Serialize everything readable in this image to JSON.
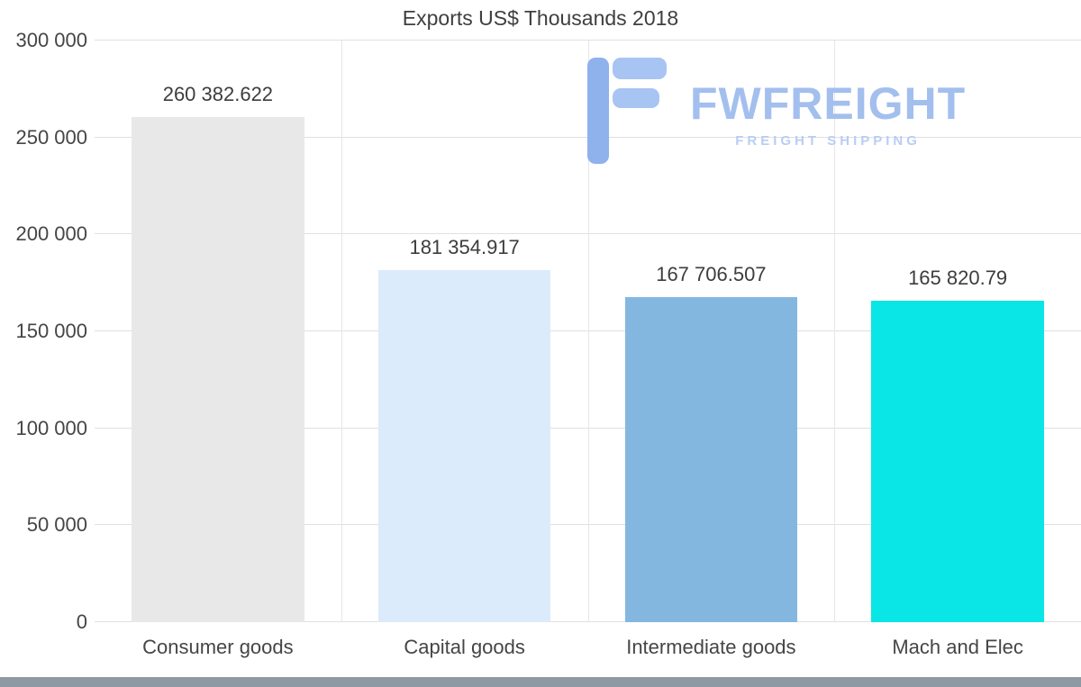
{
  "page": {
    "title": "Exports US$ Thousands 2018"
  },
  "watermark": {
    "brand": "FWFREIGHT",
    "tagline": "FREIGHT SHIPPING",
    "brand_color": "#a3bfee",
    "tagline_color": "#b9cdf4"
  },
  "chart_data": {
    "type": "bar",
    "title": "Exports US$ Thousands 2018",
    "categories": [
      "Consumer goods",
      "Capital goods",
      "Intermediate goods",
      "Mach and Elec"
    ],
    "values": [
      260382.622,
      181354.917,
      167706.507,
      165820.79
    ],
    "value_labels": [
      "260 382.622",
      "181 354.917",
      "167 706.507",
      "165 820.79"
    ],
    "bar_colors": [
      "#e8e8e8",
      "#dcebfb",
      "#84b7e0",
      "#0ae5e5"
    ],
    "xlabel": "",
    "ylabel": "",
    "ylim": [
      0,
      300000
    ],
    "ytick_interval": 50000,
    "ytick_labels": [
      "0",
      "50 000",
      "100 000",
      "150 000",
      "200 000",
      "250 000",
      "300 000"
    ],
    "grid": true,
    "legend": "none"
  }
}
